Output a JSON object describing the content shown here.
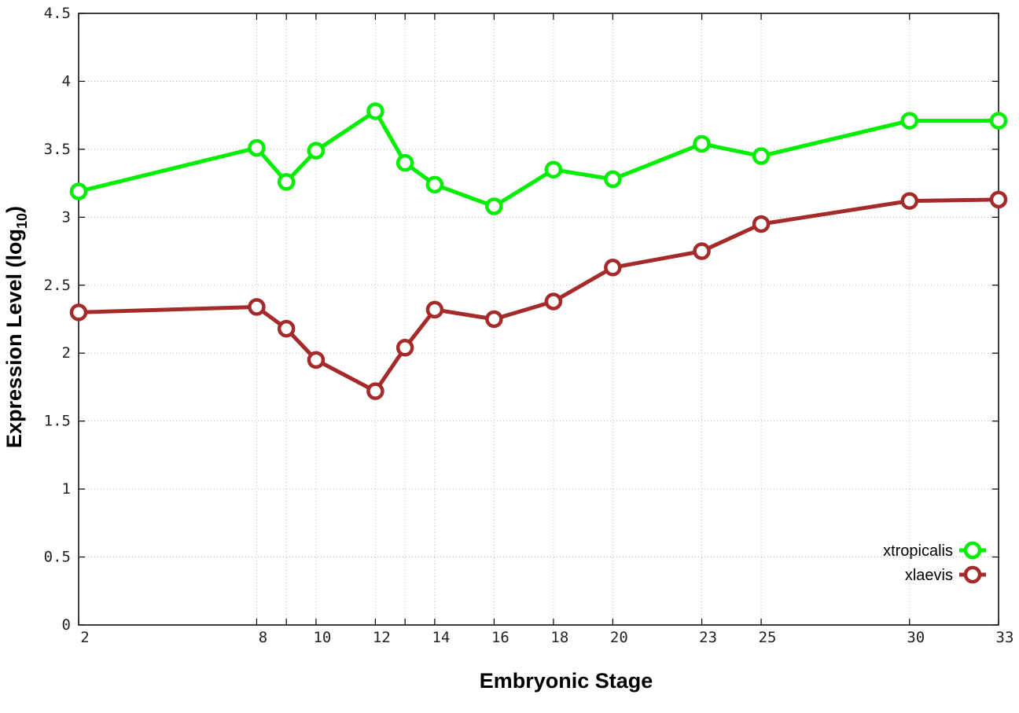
{
  "chart_data": {
    "type": "line",
    "title": "",
    "xlabel": "Embryonic Stage",
    "ylabel_main": "Expression Level (log",
    "ylabel_sub": "10",
    "ylabel_close": ")",
    "x": [
      2,
      8,
      9,
      10,
      12,
      13,
      14,
      16,
      18,
      20,
      23,
      25,
      30,
      33
    ],
    "xtick_labels": [
      "2",
      "8",
      "10",
      "12",
      "14",
      "16",
      "18",
      "20",
      "23",
      "25",
      "30",
      "33"
    ],
    "ylim": [
      0,
      4.5
    ],
    "yticks": [
      0,
      0.5,
      1,
      1.5,
      2,
      2.5,
      3,
      3.5,
      4,
      4.5
    ],
    "ytick_labels": [
      "0",
      "0.5",
      "1",
      "1.5",
      "2",
      "2.5",
      "3",
      "3.5",
      "4",
      "4.5"
    ],
    "grid": true,
    "legend_position": "bottom-right",
    "series": [
      {
        "name": "xtropicalis",
        "color": "#00ee00",
        "values": [
          3.19,
          3.51,
          3.26,
          3.49,
          3.78,
          3.4,
          3.24,
          3.08,
          3.35,
          3.28,
          3.54,
          3.45,
          3.71,
          3.71
        ]
      },
      {
        "name": "xlaevis",
        "color": "#a52a2a",
        "values": [
          2.3,
          2.34,
          2.18,
          1.95,
          1.72,
          2.04,
          2.32,
          2.25,
          2.38,
          2.63,
          2.75,
          2.95,
          3.12,
          3.13
        ]
      }
    ]
  }
}
